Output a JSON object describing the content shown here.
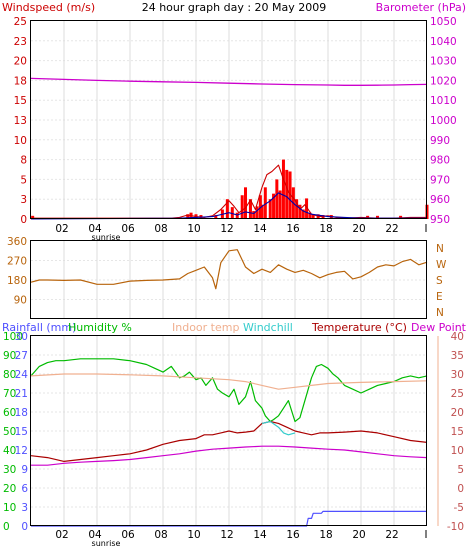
{
  "page_title": "24 hour graph day : 20 May 2009",
  "colors": {
    "windspeed": "#cc0000",
    "gust": "#ff0000",
    "avg_wind": "#0000aa",
    "barometer": "#cc00cc",
    "direction": "#b8640c",
    "rainfall": "#5050ff",
    "humidity": "#00bb00",
    "indoor": "#f0b090",
    "windchill": "#33cccc",
    "temperature": "#aa0000",
    "dewpoint": "#cc00cc",
    "grid": "#d8d8d8"
  },
  "chart_data": [
    {
      "type": "line",
      "name": "wind-baro",
      "left_label": "Windspeed (m/s)",
      "right_label": "Barometer (hPa)",
      "left_ticks": [
        "0",
        "3",
        "5",
        "8",
        "10",
        "13",
        "15",
        "18",
        "20",
        "23",
        "25"
      ],
      "right_ticks": [
        "950",
        "960",
        "970",
        "980",
        "990",
        "1000",
        "1010",
        "1020",
        "1030",
        "1040",
        "1050"
      ],
      "left_range": [
        0,
        25
      ],
      "right_range": [
        950,
        1050
      ],
      "x_range": [
        0,
        24
      ],
      "x_ticks": [
        "02",
        "04",
        "06",
        "08",
        "10",
        "12",
        "14",
        "16",
        "18",
        "20",
        "22"
      ],
      "sunrise_label": "sunrise",
      "series": [
        {
          "key": "barometer",
          "axis": "right",
          "x": [
            0,
            2,
            4,
            6,
            8,
            10,
            12,
            14,
            16,
            18,
            19,
            20,
            21,
            22,
            23,
            24
          ],
          "y": [
            1021,
            1020.5,
            1020,
            1019.6,
            1019.3,
            1019,
            1018.6,
            1018.2,
            1017.9,
            1017.7,
            1017.5,
            1017.5,
            1017.6,
            1017.7,
            1017.9,
            1018
          ]
        },
        {
          "key": "gust",
          "axis": "left",
          "mode": "bars",
          "x": [
            0.1,
            9.5,
            9.7,
            10,
            10.3,
            11.2,
            11.6,
            11.9,
            12.2,
            12.5,
            12.8,
            13,
            13.3,
            13.5,
            13.7,
            13.9,
            14,
            14.2,
            14.5,
            14.7,
            14.9,
            15.1,
            15.3,
            15.5,
            15.7,
            15.9,
            16.1,
            16.3,
            16.5,
            16.7,
            16.9,
            17.1,
            17.4,
            17.7,
            18.2,
            20.4,
            21,
            22.4,
            24
          ],
          "y": [
            0.4,
            0.6,
            0.8,
            0.6,
            0.5,
            0.5,
            1.2,
            2.5,
            1.5,
            0.8,
            3,
            4,
            2.5,
            1,
            1.6,
            3,
            1.8,
            4,
            2.5,
            3.2,
            5,
            3.6,
            7.5,
            6.2,
            6,
            4,
            2.5,
            1.8,
            1.2,
            2.6,
            0.8,
            0.6,
            0.6,
            0.5,
            0.5,
            0.4,
            0.4,
            0.4,
            1.8
          ]
        },
        {
          "key": "windspeed",
          "axis": "left",
          "x": [
            0,
            8.5,
            9,
            9.5,
            10,
            10.5,
            11,
            11.5,
            12,
            12.3,
            12.6,
            13,
            13.3,
            13.6,
            14,
            14.3,
            14.6,
            15,
            15.3,
            15.6,
            16,
            16.3,
            16.6,
            17,
            17.5,
            18,
            18.5,
            19,
            20,
            21,
            22,
            23,
            24
          ],
          "y": [
            0.1,
            0.1,
            0.2,
            0.5,
            0.3,
            0.2,
            0.4,
            1.2,
            2.3,
            1.6,
            0.8,
            1.4,
            2.4,
            1.2,
            4,
            5.6,
            6,
            6.8,
            5,
            3.4,
            2.4,
            1.2,
            1.8,
            0.6,
            0.3,
            0.4,
            0.2,
            0.1,
            0.2,
            0.1,
            0.1,
            0.2,
            0.2
          ]
        },
        {
          "key": "avg_wind",
          "axis": "left",
          "x": [
            0,
            9,
            10,
            11,
            12,
            12.5,
            13,
            13.5,
            14,
            14.5,
            15,
            15.5,
            16,
            16.5,
            17,
            18,
            19,
            20,
            24
          ],
          "y": [
            0,
            0.1,
            0.2,
            0.3,
            0.8,
            0.5,
            0.9,
            0.7,
            1.6,
            2.3,
            3.3,
            2.8,
            1.8,
            1,
            0.6,
            0.3,
            0.2,
            0.1,
            0.1
          ]
        }
      ]
    },
    {
      "type": "line",
      "name": "direction",
      "left_ticks": [
        "90",
        "180",
        "270",
        "360"
      ],
      "right_ticks": [
        "N",
        "W",
        "S",
        "E",
        "N"
      ],
      "left_range": [
        0,
        360
      ],
      "x_range": [
        0,
        24
      ],
      "series": [
        {
          "key": "direction",
          "axis": "left",
          "x": [
            0,
            0.5,
            1,
            2,
            3,
            4,
            5,
            6,
            7,
            8,
            9,
            9.5,
            10,
            10.5,
            11,
            11.2,
            11.5,
            12,
            12.5,
            13,
            13.5,
            14,
            14.5,
            15,
            15.5,
            16,
            16.5,
            17,
            17.5,
            18,
            18.5,
            19,
            19.5,
            20,
            20.5,
            21,
            21.5,
            22,
            22.5,
            23,
            23.5,
            24
          ],
          "y": [
            170,
            180,
            180,
            178,
            180,
            160,
            160,
            175,
            178,
            180,
            185,
            210,
            225,
            240,
            190,
            140,
            260,
            315,
            320,
            240,
            210,
            230,
            215,
            250,
            230,
            215,
            225,
            210,
            190,
            205,
            215,
            220,
            185,
            195,
            215,
            240,
            250,
            245,
            265,
            275,
            250,
            262
          ]
        }
      ]
    },
    {
      "type": "line",
      "name": "climate",
      "labels": {
        "rainfall": "Rainfall (mm)",
        "humidity": "Humidity %",
        "indoor": "Indoor temp",
        "windchill": "Windchill",
        "temperature": "Temperature (°C)",
        "dewpoint": "Dew Point"
      },
      "left_ticks_rain": [
        "0",
        "3",
        "6",
        "9",
        "12",
        "15",
        "18",
        "21",
        "24",
        "27",
        "30"
      ],
      "left_ticks_hum": [
        "0",
        "10",
        "20",
        "30",
        "40",
        "50",
        "60",
        "70",
        "80",
        "90",
        "100"
      ],
      "right_ticks_temp": [
        "-10",
        "-5",
        "0",
        "5",
        "10",
        "15",
        "20",
        "25",
        "30",
        "35",
        "40"
      ],
      "right_range": [
        -10,
        40
      ],
      "x_range": [
        0,
        24
      ],
      "x_ticks": [
        "02",
        "04",
        "06",
        "08",
        "10",
        "12",
        "14",
        "16",
        "18",
        "20",
        "22"
      ],
      "sunrise_label": "sunrise",
      "series": [
        {
          "key": "humidity",
          "axis": "hum",
          "x": [
            0,
            0.5,
            1,
            1.5,
            2,
            3,
            4,
            5,
            6,
            7,
            7.5,
            8,
            8.5,
            9,
            9.3,
            9.6,
            10,
            10.3,
            10.6,
            11,
            11.3,
            11.6,
            12,
            12.3,
            12.6,
            13,
            13.3,
            13.6,
            14,
            14.2,
            14.5,
            14.7,
            15,
            15.3,
            15.6,
            16,
            16.3,
            16.6,
            17,
            17.3,
            17.6,
            18,
            18.3,
            18.6,
            19,
            19.5,
            20,
            20.5,
            21,
            21.5,
            22,
            22.5,
            23,
            23.5,
            24
          ],
          "y": [
            79,
            84,
            86,
            87,
            87,
            88,
            88,
            88,
            87,
            85,
            83,
            81,
            84,
            78,
            79,
            81,
            77,
            78,
            74,
            78,
            72,
            70,
            68,
            72,
            64,
            68,
            76,
            66,
            62,
            58,
            55,
            56,
            58,
            62,
            66,
            55,
            57,
            66,
            78,
            84,
            85,
            83,
            80,
            78,
            74,
            72,
            70,
            72,
            74,
            75,
            76,
            78,
            79,
            78,
            79
          ]
        },
        {
          "key": "indoor",
          "axis": "temp",
          "x": [
            0,
            2,
            4,
            6,
            8,
            10,
            12,
            13,
            14,
            15,
            16,
            17,
            18,
            20,
            22,
            24
          ],
          "y": [
            29.5,
            30,
            30,
            29.8,
            29.5,
            29,
            28.5,
            28,
            27,
            26,
            26.5,
            27,
            27.5,
            27.8,
            28,
            28.2
          ]
        },
        {
          "key": "temperature",
          "axis": "temp",
          "x": [
            0,
            1,
            2,
            3,
            4,
            5,
            6,
            7,
            8,
            9,
            10,
            10.5,
            11,
            11.5,
            12,
            12.5,
            13,
            13.5,
            14,
            14.5,
            15,
            15.5,
            16,
            16.5,
            17,
            17.5,
            18,
            19,
            20,
            21,
            22,
            23,
            24
          ],
          "y": [
            8.5,
            8,
            7,
            7.5,
            8,
            8.5,
            9,
            10,
            11.5,
            12.5,
            13,
            14,
            14,
            14.5,
            15,
            14.5,
            14.7,
            15,
            17,
            17.5,
            17,
            16,
            15,
            14.5,
            14,
            14.5,
            14.5,
            14.7,
            15,
            14.5,
            13.5,
            12.5,
            12
          ]
        },
        {
          "key": "windchill",
          "axis": "temp",
          "x": [
            14,
            14.5,
            15,
            15.3,
            15.6,
            16
          ],
          "y": [
            17,
            17.5,
            16,
            14.5,
            14,
            14.5
          ]
        },
        {
          "key": "dewpoint",
          "axis": "temp",
          "x": [
            0,
            1,
            2,
            3,
            4,
            5,
            6,
            7,
            8,
            9,
            10,
            11,
            12,
            13,
            14,
            15,
            16,
            17,
            18,
            19,
            20,
            21,
            22,
            23,
            24
          ],
          "y": [
            6,
            6,
            6.5,
            6.8,
            7,
            7.2,
            7.5,
            8,
            8.5,
            9,
            9.7,
            10.2,
            10.5,
            10.8,
            11,
            11,
            10.8,
            10.5,
            10.2,
            10,
            9.5,
            9,
            8.5,
            8.2,
            8
          ]
        },
        {
          "key": "rainfall",
          "axis": "rain",
          "x": [
            0,
            16.7,
            16.8,
            17,
            17.1,
            17.6,
            17.7,
            18,
            24
          ],
          "y": [
            0,
            0,
            1.2,
            1.2,
            2,
            2,
            2.3,
            2.3,
            2.3
          ]
        }
      ]
    }
  ]
}
